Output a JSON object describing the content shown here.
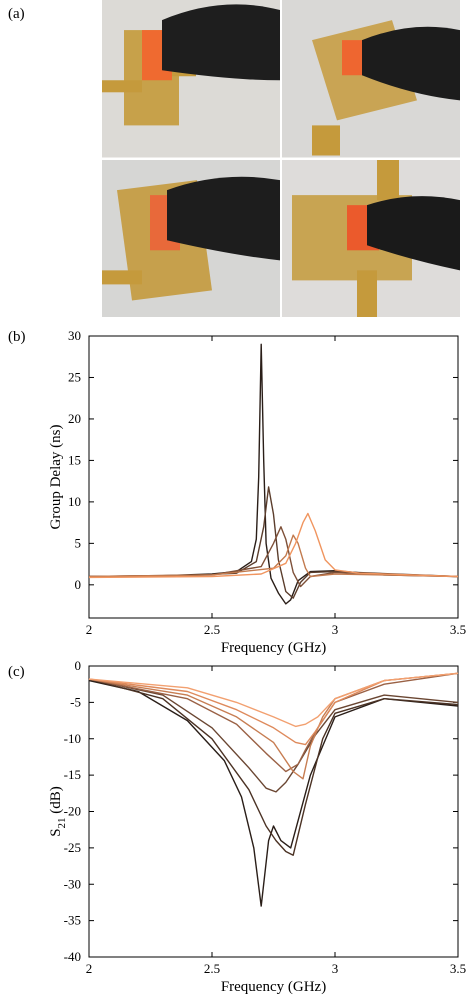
{
  "panels": {
    "a": "(a)",
    "b": "(b)",
    "c": "(c)"
  },
  "photos": [
    {
      "board": "#c7a14a",
      "clip": "#ef6a30",
      "handle": "#1e1e1e",
      "bg": "#dcdad6"
    },
    {
      "board": "#c9a454",
      "clip": "#ee6630",
      "handle": "#1c1c1c",
      "bg": "#d9d8d6"
    },
    {
      "board": "#c6a04c",
      "clip": "#e8693a",
      "handle": "#1d1d1d",
      "bg": "#d6d6d4"
    },
    {
      "board": "#c8a452",
      "clip": "#eb5a2c",
      "handle": "#1a1a1a",
      "bg": "#dedcda"
    }
  ],
  "chart_data": [
    {
      "type": "line",
      "xlabel": "Frequency (GHz)",
      "ylabel": "Group Delay (ns)",
      "xlim": [
        2,
        3.5
      ],
      "ylim": [
        -4,
        30
      ],
      "xticks": [
        "2",
        "2.5",
        "3",
        "3.5"
      ],
      "yticks": [
        "0",
        "5",
        "10",
        "15",
        "20",
        "25",
        "30"
      ],
      "grid": false,
      "series": [
        {
          "color": "#2a1e18",
          "x": [
            2.0,
            2.3,
            2.5,
            2.6,
            2.66,
            2.68,
            2.69,
            2.7,
            2.71,
            2.72,
            2.74,
            2.77,
            2.8,
            2.82,
            2.85,
            2.9,
            3.0,
            3.2,
            3.5
          ],
          "y": [
            1.0,
            1.1,
            1.3,
            1.6,
            2.8,
            5.5,
            13.0,
            29.0,
            15.0,
            5.0,
            0.8,
            -1.0,
            -2.3,
            -1.8,
            0.5,
            1.6,
            1.7,
            1.2,
            1.0
          ]
        },
        {
          "color": "#5b3d2c",
          "x": [
            2.0,
            2.4,
            2.6,
            2.68,
            2.71,
            2.73,
            2.75,
            2.77,
            2.8,
            2.83,
            2.86,
            2.9,
            3.0,
            3.5
          ],
          "y": [
            1.0,
            1.1,
            1.4,
            2.8,
            7.0,
            11.8,
            8.5,
            3.0,
            -0.8,
            -1.6,
            0.3,
            1.5,
            1.6,
            1.0
          ]
        },
        {
          "color": "#7e5038",
          "x": [
            2.0,
            2.5,
            2.7,
            2.75,
            2.78,
            2.8,
            2.83,
            2.86,
            2.9,
            3.0,
            3.5
          ],
          "y": [
            1.0,
            1.2,
            2.2,
            5.0,
            7.0,
            5.5,
            1.5,
            -0.2,
            1.0,
            1.5,
            1.0
          ]
        },
        {
          "color": "#c27a4e",
          "x": [
            2.0,
            2.5,
            2.75,
            2.8,
            2.83,
            2.85,
            2.88,
            2.9,
            3.0,
            3.5
          ],
          "y": [
            1.0,
            1.2,
            2.0,
            3.5,
            6.0,
            5.0,
            2.0,
            1.0,
            1.3,
            1.0
          ]
        },
        {
          "color": "#f0955f",
          "x": [
            2.0,
            2.5,
            2.7,
            2.8,
            2.84,
            2.87,
            2.89,
            2.92,
            2.96,
            3.0,
            3.1,
            3.5
          ],
          "y": [
            0.9,
            1.0,
            1.3,
            2.6,
            5.0,
            7.5,
            8.6,
            6.5,
            3.0,
            1.8,
            1.4,
            1.0
          ]
        }
      ]
    },
    {
      "type": "line",
      "xlabel": "Frequency (GHz)",
      "ylabel": "S21 (dB)",
      "xlim": [
        2,
        3.5
      ],
      "ylim": [
        -40,
        0
      ],
      "xticks": [
        "2",
        "2.5",
        "3",
        "3.5"
      ],
      "yticks": [
        "0",
        "-5",
        "-10",
        "-15",
        "-20",
        "-25",
        "-30",
        "-35",
        "-40"
      ],
      "grid": false,
      "series": [
        {
          "color": "#2a1e18",
          "x": [
            2.0,
            2.2,
            2.4,
            2.55,
            2.62,
            2.67,
            2.7,
            2.73,
            2.75,
            2.78,
            2.82,
            2.9,
            3.0,
            3.2,
            3.5
          ],
          "y": [
            -2.0,
            -3.5,
            -7.5,
            -13.0,
            -18.0,
            -25.0,
            -33.0,
            -24.0,
            -22.0,
            -24.0,
            -25.0,
            -15.0,
            -7.0,
            -4.5,
            -5.5
          ]
        },
        {
          "color": "#4b3224",
          "x": [
            2.0,
            2.3,
            2.5,
            2.65,
            2.72,
            2.76,
            2.8,
            2.83,
            2.88,
            2.95,
            3.0,
            3.2,
            3.5
          ],
          "y": [
            -1.8,
            -4.5,
            -10.0,
            -17.0,
            -22.0,
            -24.0,
            -25.5,
            -26.0,
            -19.0,
            -10.0,
            -6.5,
            -4.5,
            -5.3
          ]
        },
        {
          "color": "#6a4632",
          "x": [
            2.0,
            2.3,
            2.5,
            2.65,
            2.72,
            2.76,
            2.8,
            2.85,
            2.92,
            3.0,
            3.2,
            3.5
          ],
          "y": [
            -1.8,
            -4.0,
            -8.5,
            -14.0,
            -16.8,
            -17.3,
            -16.0,
            -13.5,
            -9.5,
            -6.0,
            -4.0,
            -5.0
          ]
        },
        {
          "color": "#9a6145",
          "x": [
            2.0,
            2.4,
            2.6,
            2.72,
            2.8,
            2.85,
            2.88,
            2.93,
            3.0,
            3.2,
            3.5
          ],
          "y": [
            -1.8,
            -4.5,
            -8.0,
            -12.0,
            -14.5,
            -13.5,
            -11.5,
            -8.5,
            -5.0,
            -2.5,
            -1.0
          ]
        },
        {
          "color": "#c77d52",
          "x": [
            2.0,
            2.4,
            2.6,
            2.75,
            2.83,
            2.87,
            2.9,
            2.95,
            3.0,
            3.2,
            3.5
          ],
          "y": [
            -1.8,
            -4.0,
            -7.0,
            -10.5,
            -14.5,
            -15.5,
            -11.0,
            -7.0,
            -4.5,
            -2.0,
            -1.0
          ]
        },
        {
          "color": "#de8a5c",
          "x": [
            2.0,
            2.4,
            2.6,
            2.75,
            2.84,
            2.88,
            2.92,
            3.0,
            3.2,
            3.5
          ],
          "y": [
            -1.8,
            -3.5,
            -6.0,
            -8.5,
            -10.5,
            -10.8,
            -9.0,
            -5.0,
            -2.0,
            -1.0
          ]
        },
        {
          "color": "#f2a070",
          "x": [
            2.0,
            2.4,
            2.6,
            2.75,
            2.84,
            2.88,
            2.93,
            3.0,
            3.2,
            3.5
          ],
          "y": [
            -1.8,
            -3.0,
            -5.0,
            -7.0,
            -8.3,
            -8.0,
            -7.0,
            -4.5,
            -2.0,
            -1.0
          ]
        }
      ]
    }
  ]
}
